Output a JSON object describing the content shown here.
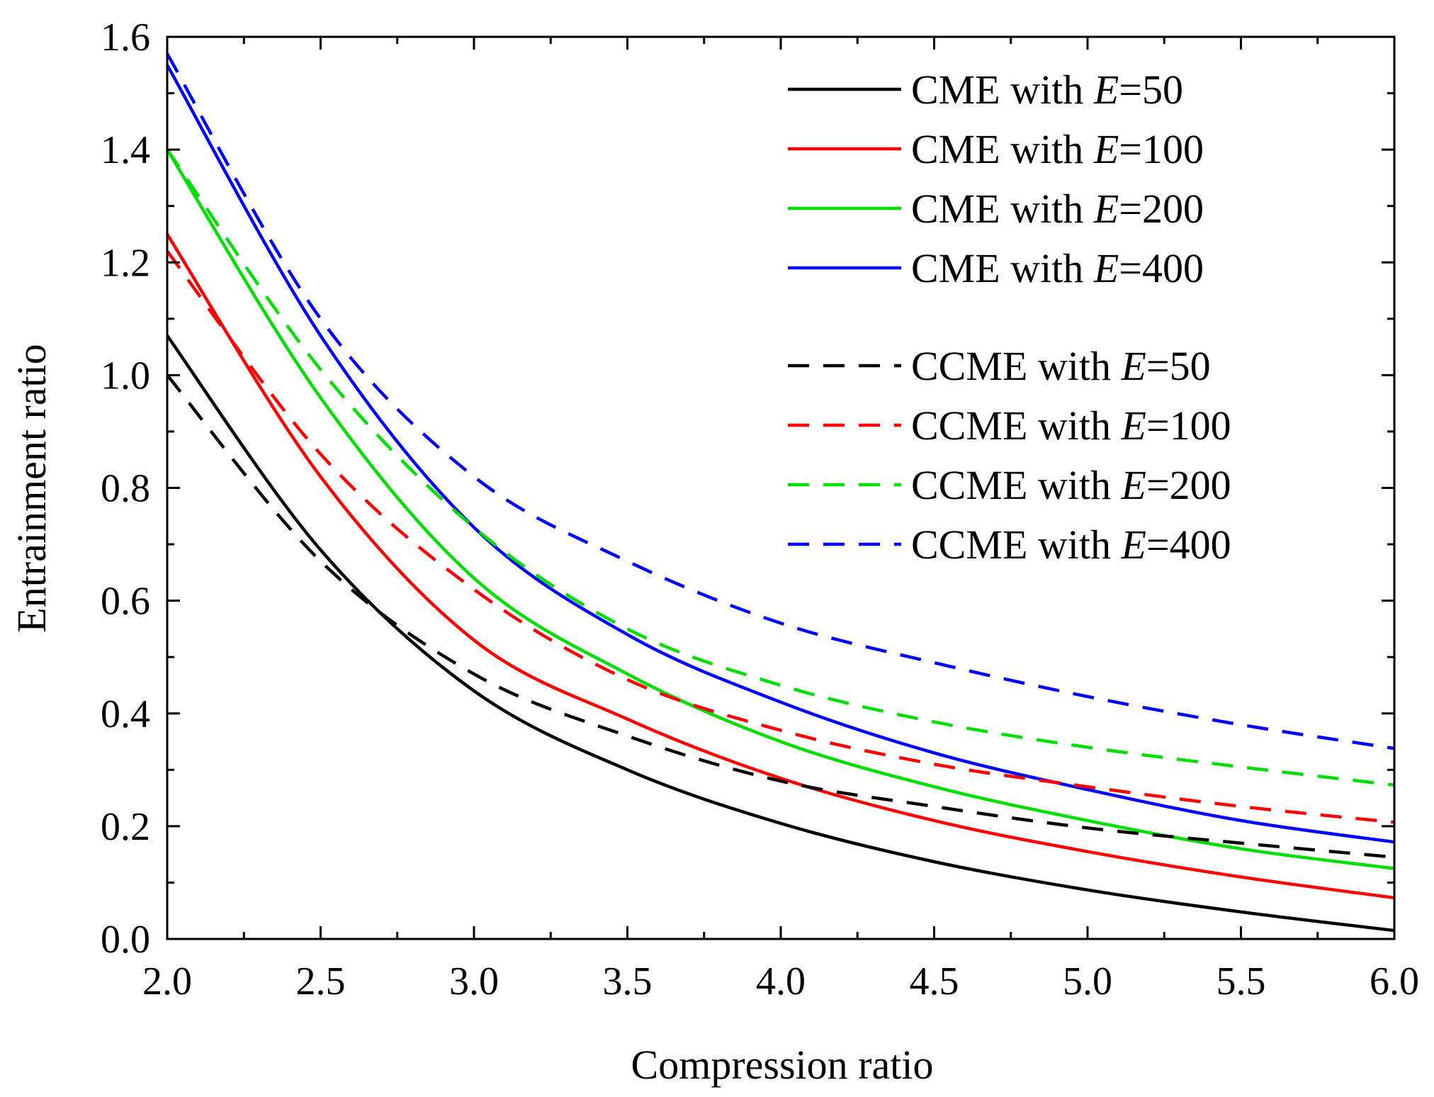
{
  "chart_data": {
    "type": "line",
    "title": "",
    "xlabel": "Compression ratio",
    "ylabel": "Entrainment ratio",
    "xlim": [
      2.0,
      6.0
    ],
    "ylim": [
      0.0,
      1.6
    ],
    "xticks": [
      2.0,
      2.5,
      3.0,
      3.5,
      4.0,
      4.5,
      5.0,
      5.5,
      6.0
    ],
    "xtick_labels": [
      "2.0",
      "2.5",
      "3.0",
      "3.5",
      "4.0",
      "4.5",
      "5.0",
      "5.5",
      "6.0"
    ],
    "yticks": [
      0.0,
      0.2,
      0.4,
      0.6,
      0.8,
      1.0,
      1.2,
      1.4,
      1.6
    ],
    "ytick_labels": [
      "0.0",
      "0.2",
      "0.4",
      "0.6",
      "0.8",
      "1.0",
      "1.2",
      "1.4",
      "1.6"
    ],
    "grid": false,
    "legend_position": "top-right",
    "x": [
      2.0,
      2.5,
      3.0,
      3.5,
      4.0,
      4.5,
      5.0,
      5.5,
      6.0
    ],
    "series": [
      {
        "name": "CME with E=50",
        "label_prefix": "CME with ",
        "label_var": "E",
        "label_value": "=50",
        "color": "#000000",
        "dash": "solid",
        "values": [
          1.07,
          0.69,
          0.44,
          0.3,
          0.205,
          0.137,
          0.087,
          0.048,
          0.015
        ]
      },
      {
        "name": "CME with E=100",
        "label_prefix": "CME with ",
        "label_var": "E",
        "label_value": "=100",
        "color": "#ff0000",
        "dash": "solid",
        "values": [
          1.25,
          0.82,
          0.53,
          0.39,
          0.285,
          0.21,
          0.155,
          0.11,
          0.073
        ]
      },
      {
        "name": "CME with E=200",
        "label_prefix": "CME with ",
        "label_var": "E",
        "label_value": "=200",
        "color": "#00dd00",
        "dash": "solid",
        "values": [
          1.4,
          0.96,
          0.64,
          0.47,
          0.35,
          0.27,
          0.21,
          0.16,
          0.125
        ]
      },
      {
        "name": "CME with E=400",
        "label_prefix": "CME with ",
        "label_var": "E",
        "label_value": "=400",
        "color": "#0000ff",
        "dash": "solid",
        "values": [
          1.55,
          1.07,
          0.73,
          0.54,
          0.42,
          0.33,
          0.265,
          0.21,
          0.172
        ]
      },
      {
        "name": "CCME with E=50",
        "label_prefix": "CCME with ",
        "label_var": "E",
        "label_value": "=50",
        "color": "#000000",
        "dash": "dashed",
        "values": [
          1.0,
          0.67,
          0.47,
          0.36,
          0.28,
          0.235,
          0.197,
          0.17,
          0.145
        ]
      },
      {
        "name": "CCME with E=100",
        "label_prefix": "CCME with ",
        "label_var": "E",
        "label_value": "=100",
        "color": "#ff0000",
        "dash": "dashed",
        "values": [
          1.22,
          0.86,
          0.62,
          0.46,
          0.37,
          0.31,
          0.27,
          0.235,
          0.207
        ]
      },
      {
        "name": "CCME with E=200",
        "label_prefix": "CCME with ",
        "label_var": "E",
        "label_value": "=200",
        "color": "#00dd00",
        "dash": "dashed",
        "values": [
          1.4,
          1.01,
          0.73,
          0.55,
          0.45,
          0.385,
          0.34,
          0.305,
          0.273
        ]
      },
      {
        "name": "CCME with E=400",
        "label_prefix": "CCME with ",
        "label_var": "E",
        "label_value": "=400",
        "color": "#0000ff",
        "dash": "dashed",
        "values": [
          1.57,
          1.1,
          0.82,
          0.67,
          0.56,
          0.49,
          0.43,
          0.38,
          0.338
        ]
      }
    ]
  }
}
